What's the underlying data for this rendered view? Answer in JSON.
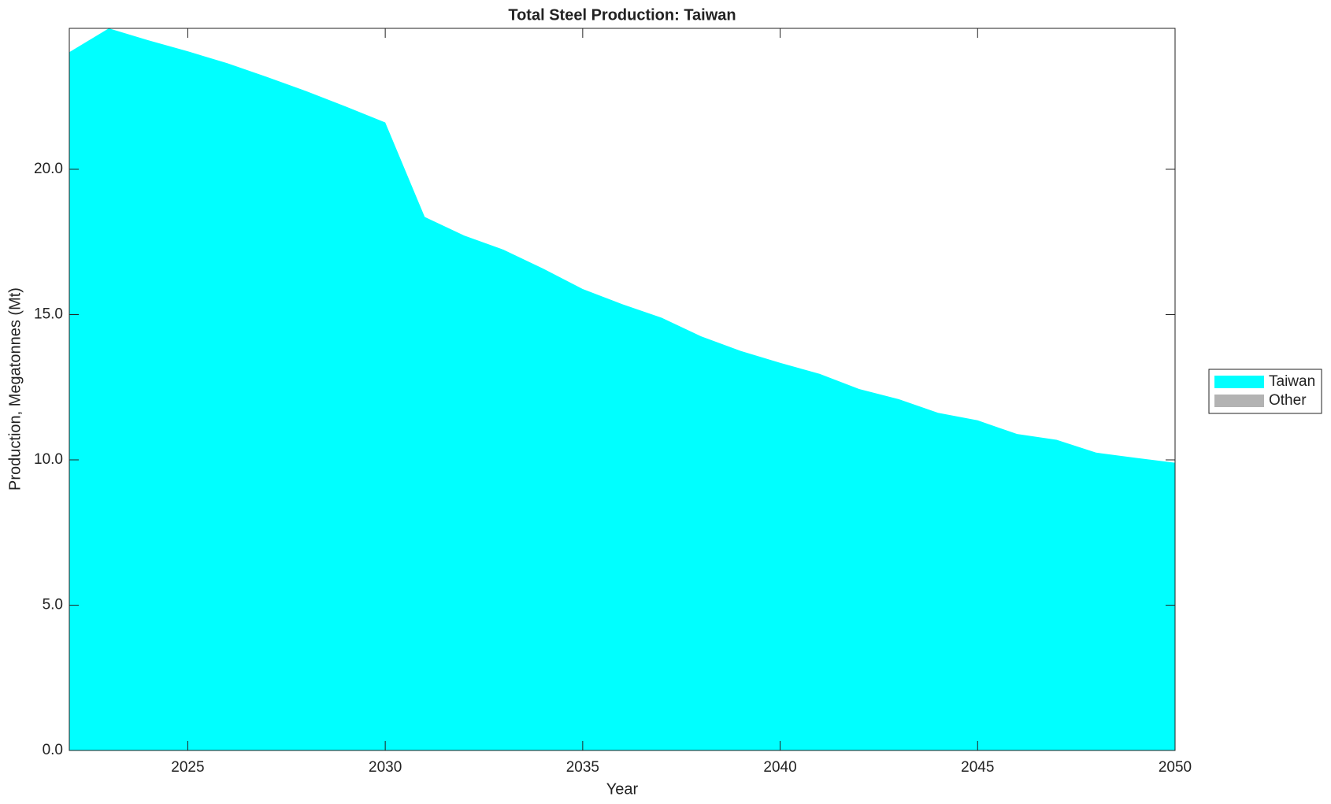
{
  "chart_data": {
    "type": "area",
    "stacked": true,
    "title": "Total Steel Production: Taiwan",
    "x_label": "Year",
    "y_label": "Production, Megatonnes (Mt)",
    "x": [
      2022,
      2023,
      2024,
      2025,
      2026,
      2027,
      2028,
      2029,
      2030,
      2031,
      2032,
      2033,
      2034,
      2035,
      2036,
      2037,
      2038,
      2039,
      2040,
      2041,
      2042,
      2043,
      2044,
      2045,
      2046,
      2047,
      2048,
      2049,
      2050
    ],
    "series": [
      {
        "name": "Taiwan",
        "color": "#00ffff",
        "values": [
          24.03,
          24.85,
          24.44,
          24.06,
          23.65,
          23.18,
          22.69,
          22.16,
          21.61,
          18.36,
          17.72,
          17.23,
          16.58,
          15.88,
          15.36,
          14.89,
          14.25,
          13.75,
          13.34,
          12.96,
          12.44,
          12.09,
          11.62,
          11.36,
          10.89,
          10.69,
          10.25,
          10.07,
          9.9
        ]
      },
      {
        "name": "Other",
        "color": "#b3b3b3",
        "values": [
          0,
          0,
          0,
          0,
          0,
          0,
          0,
          0,
          0,
          0,
          0,
          0,
          0,
          0,
          0,
          0,
          0,
          0,
          0,
          0,
          0,
          0,
          0,
          0,
          0,
          0,
          0,
          0,
          0
        ]
      }
    ],
    "xlim": [
      2022,
      2050
    ],
    "xticks": [
      2025,
      2030,
      2035,
      2040,
      2045,
      2050
    ],
    "ylim": [
      0,
      24.85
    ],
    "yticks": [
      {
        "value": 0,
        "label": "0.0"
      },
      {
        "value": 5,
        "label": "5.0"
      },
      {
        "value": 10,
        "label": "10.0"
      },
      {
        "value": 15,
        "label": "15.0"
      },
      {
        "value": 20,
        "label": "20.0"
      }
    ],
    "legend": "right"
  }
}
